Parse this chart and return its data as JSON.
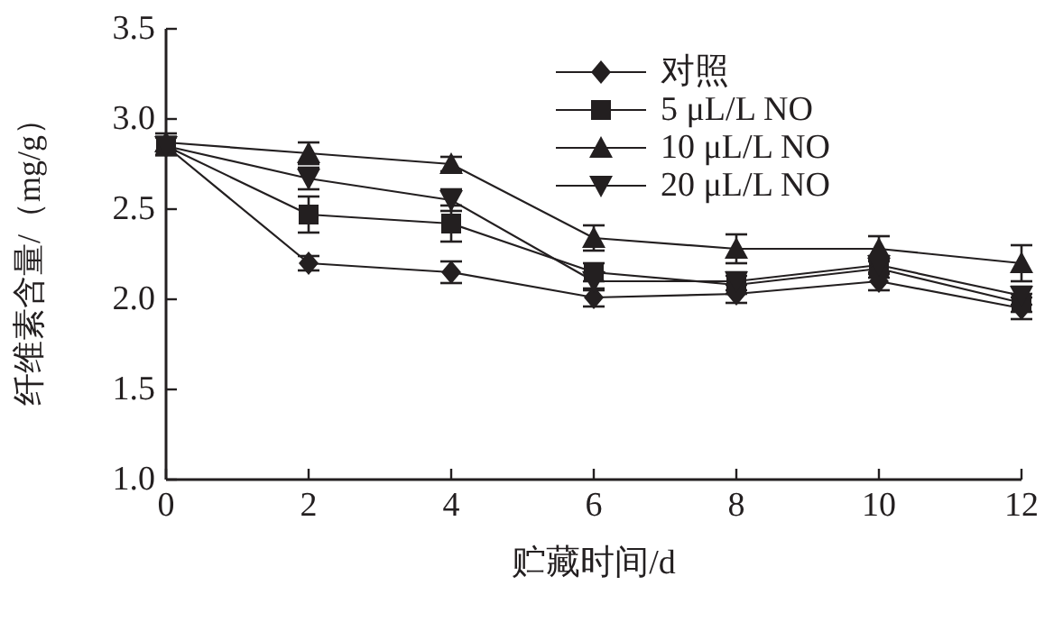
{
  "chart_data": {
    "type": "line",
    "xlabel": "贮藏时间/d",
    "ylabel": "纤维素含量/（mg/g）",
    "x": [
      0,
      2,
      4,
      6,
      8,
      10,
      12
    ],
    "xlim": [
      0,
      12
    ],
    "xticks": [
      0,
      2,
      4,
      6,
      8,
      10,
      12
    ],
    "ylim": [
      1.0,
      3.5
    ],
    "yticks": [
      {
        "value": 1.0,
        "label": "1.0"
      },
      {
        "value": 1.5,
        "label": "1.5"
      },
      {
        "value": 2.0,
        "label": "2.0"
      },
      {
        "value": 2.5,
        "label": "2.5"
      },
      {
        "value": 3.0,
        "label": "3.0"
      },
      {
        "value": 3.5,
        "label": "3.5"
      }
    ],
    "grid": false,
    "legend": "top right",
    "line_style": "solid",
    "series": [
      {
        "name": "对照",
        "color": "#231f20",
        "marker": "diamond",
        "values": [
          2.85,
          2.2,
          2.15,
          2.01,
          2.03,
          2.1,
          1.95
        ],
        "errors": [
          0.05,
          0.04,
          0.06,
          0.05,
          0.05,
          0.05,
          0.06
        ]
      },
      {
        "name": "5 μL/L NO",
        "color": "#231f20",
        "marker": "square",
        "values": [
          2.85,
          2.47,
          2.42,
          2.15,
          2.08,
          2.17,
          1.98
        ],
        "errors": [
          0.05,
          0.1,
          0.1,
          0.05,
          0.05,
          0.05,
          0.05
        ]
      },
      {
        "name": "10 μL/L NO",
        "color": "#231f20",
        "marker": "triangle",
        "values": [
          2.87,
          2.81,
          2.75,
          2.34,
          2.28,
          2.28,
          2.2
        ],
        "errors": [
          0.05,
          0.06,
          0.04,
          0.07,
          0.08,
          0.07,
          0.1
        ]
      },
      {
        "name": "20 μL/L NO",
        "color": "#231f20",
        "marker": "triangle-down",
        "values": [
          2.85,
          2.67,
          2.55,
          2.1,
          2.1,
          2.19,
          2.02
        ],
        "errors": [
          0.05,
          0.06,
          0.06,
          0.05,
          0.05,
          0.05,
          0.05
        ]
      }
    ]
  }
}
